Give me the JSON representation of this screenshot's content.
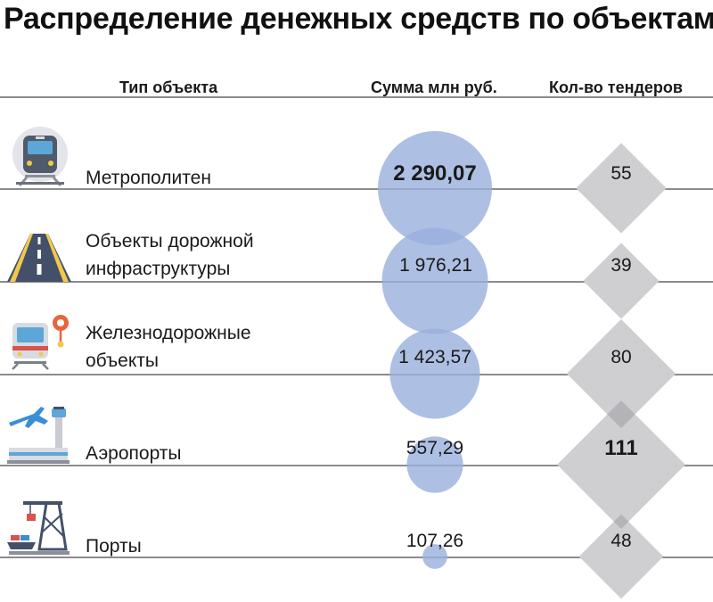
{
  "title": "Распределение денежных средств по объектам",
  "headers": {
    "type": "Тип объекта",
    "amount": "Сумма млн руб.",
    "count": "Кол-во тендеров"
  },
  "colors": {
    "bubble": "#98afdc",
    "diamond": "#cfcfd2",
    "overlap_diamond": "#b4b4b8",
    "line": "#8c8c8c"
  },
  "rows": [
    {
      "label_lines": [
        "Метрополитен"
      ],
      "amount_label": "2 290,07",
      "count_label": "55",
      "icon": "metro-train-icon",
      "amount_bold": true,
      "count_bold": false
    },
    {
      "label_lines": [
        "Объекты дорожной",
        "инфраструктуры"
      ],
      "amount_label": "1 976,21",
      "count_label": "39",
      "icon": "road-icon",
      "amount_bold": false,
      "count_bold": false
    },
    {
      "label_lines": [
        "Железнодорожные",
        "объекты"
      ],
      "amount_label": "1 423,57",
      "count_label": "80",
      "icon": "railway-train-icon",
      "amount_bold": false,
      "count_bold": false
    },
    {
      "label_lines": [
        "Аэропорты"
      ],
      "amount_label": "557,29",
      "count_label": "111",
      "icon": "airport-icon",
      "amount_bold": false,
      "count_bold": true
    },
    {
      "label_lines": [
        "Порты"
      ],
      "amount_label": "107,26",
      "count_label": "48",
      "icon": "port-crane-icon",
      "amount_bold": false,
      "count_bold": false
    }
  ],
  "chart_data": {
    "type": "table",
    "title": "Распределение денежных средств по объектам",
    "columns": [
      "Тип объекта",
      "Сумма млн руб.",
      "Кол-во тендеров"
    ],
    "categories": [
      "Метрополитен",
      "Объекты дорожной инфраструктуры",
      "Железнодорожные объекты",
      "Аэропорты",
      "Порты"
    ],
    "series": [
      {
        "name": "Сумма млн руб.",
        "values": [
          2290.07,
          1976.21,
          1423.57,
          557.29,
          107.26
        ]
      },
      {
        "name": "Кол-во тендеров",
        "values": [
          55,
          39,
          80,
          111,
          48
        ]
      }
    ]
  }
}
